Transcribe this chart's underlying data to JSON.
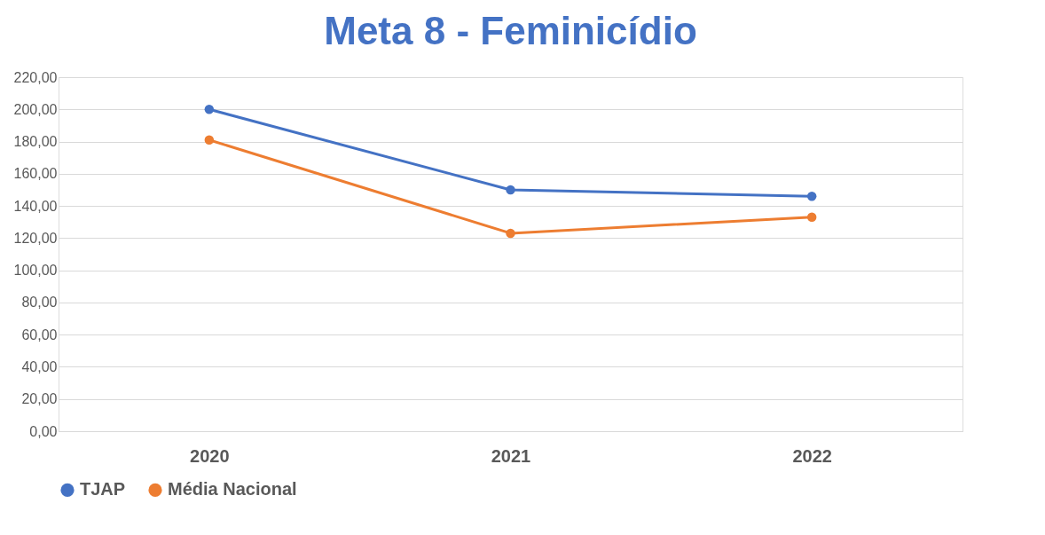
{
  "chart_data": {
    "type": "line",
    "title": "Meta 8 - Feminicídio",
    "categories": [
      "2020",
      "2021",
      "2022"
    ],
    "series": [
      {
        "name": "TJAP",
        "color": "#4472c4",
        "values": [
          200,
          150,
          146
        ]
      },
      {
        "name": "Média Nacional",
        "color": "#ed7d31",
        "values": [
          181,
          123,
          133
        ]
      }
    ],
    "ylim": [
      0,
      220
    ],
    "yticks": [
      {
        "value": 0,
        "label": "0,00"
      },
      {
        "value": 20,
        "label": "20,00"
      },
      {
        "value": 40,
        "label": "40,00"
      },
      {
        "value": 60,
        "label": "60,00"
      },
      {
        "value": 80,
        "label": "80,00"
      },
      {
        "value": 100,
        "label": "100,00"
      },
      {
        "value": 120,
        "label": "120,00"
      },
      {
        "value": 140,
        "label": "140,00"
      },
      {
        "value": 160,
        "label": "160,00"
      },
      {
        "value": 180,
        "label": "180,00"
      },
      {
        "value": 200,
        "label": "200,00"
      },
      {
        "value": 220,
        "label": "220,00"
      }
    ],
    "grid": "y",
    "legend": "bottom",
    "marker": "circle",
    "line_style": "solid"
  }
}
